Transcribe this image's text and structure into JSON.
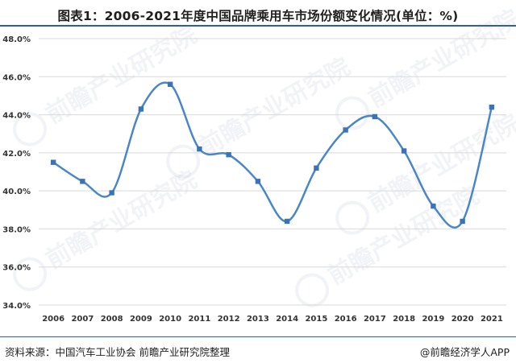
{
  "title": "图表1：2006-2021年度中国品牌乘用车市场份额变化情况(单位：%)",
  "footer": {
    "source": "资料来源：中国汽车工业协会 前瞻产业研究院整理",
    "credit": "@前瞻经济学人APP"
  },
  "watermark": {
    "text": "前瞻产业研究院",
    "icon": "qianzhan-logo-icon"
  },
  "colors": {
    "line": "#4a87c8",
    "marker": "#3a73b6",
    "grid": "#d9d9d9",
    "accent": "#2f5f98"
  },
  "chart_data": {
    "type": "line",
    "title": "图表1：2006-2021年度中国品牌乘用车市场份额变化情况(单位：%)",
    "xlabel": "",
    "ylabel": "",
    "categories": [
      "2006",
      "2007",
      "2008",
      "2009",
      "2010",
      "2011",
      "2012",
      "2013",
      "2014",
      "2015",
      "2016",
      "2017",
      "2018",
      "2019",
      "2020",
      "2021"
    ],
    "series": [
      {
        "values": [
          41.5,
          40.5,
          39.9,
          44.3,
          45.6,
          42.2,
          41.9,
          40.5,
          38.4,
          41.2,
          43.2,
          43.9,
          42.1,
          39.2,
          38.4,
          44.4
        ]
      }
    ],
    "ylim": [
      34,
      48
    ],
    "yticks": [
      34,
      36,
      38,
      40,
      42,
      44,
      46,
      48
    ],
    "ytick_labels": [
      "34.0%",
      "36.0%",
      "38.0%",
      "40.0%",
      "42.0%",
      "44.0%",
      "46.0%",
      "48.0%"
    ],
    "grid": true,
    "smooth": true,
    "legend": "none"
  }
}
